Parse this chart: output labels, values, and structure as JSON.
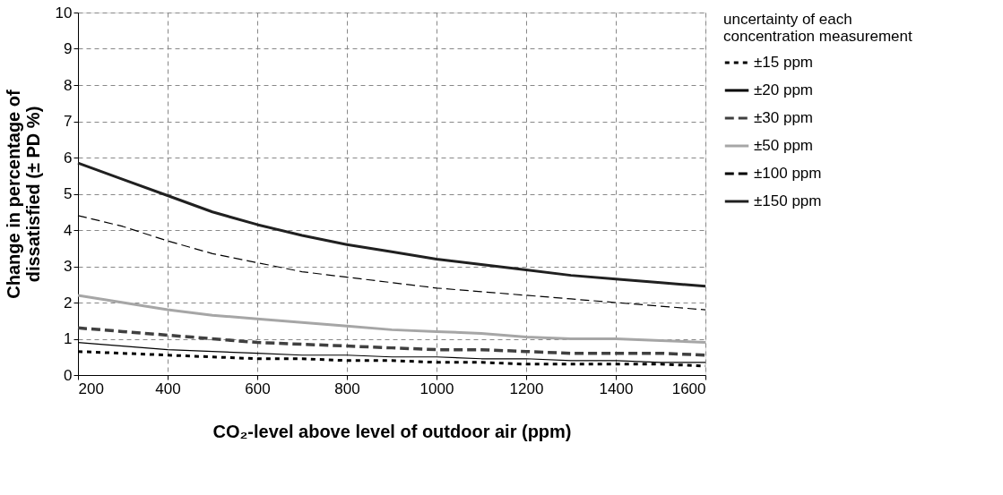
{
  "chart_data": {
    "type": "line",
    "xlabel": "CO₂-level above level of outdoor air  (ppm)",
    "ylabel": "Change in percentage of dissatisfied (± PD %)",
    "legend_title": "uncertainty of each concentration measurement",
    "x": [
      200,
      300,
      400,
      500,
      600,
      700,
      800,
      900,
      1000,
      1100,
      1200,
      1300,
      1400,
      1500,
      1600
    ],
    "series": [
      {
        "name": "±15 ppm",
        "color": "#000000",
        "line_style": "dotted",
        "values": [
          0.65,
          0.6,
          0.55,
          0.5,
          0.45,
          0.45,
          0.4,
          0.4,
          0.35,
          0.35,
          0.3,
          0.3,
          0.3,
          0.3,
          0.25
        ]
      },
      {
        "name": "±20 ppm",
        "color": "#000000",
        "line_style": "solid",
        "values": [
          0.9,
          0.8,
          0.7,
          0.65,
          0.6,
          0.55,
          0.55,
          0.5,
          0.5,
          0.45,
          0.45,
          0.4,
          0.4,
          0.35,
          0.35
        ]
      },
      {
        "name": "±30 ppm",
        "color": "#404040",
        "line_style": "dashed",
        "values": [
          1.3,
          1.2,
          1.1,
          1.0,
          0.9,
          0.85,
          0.8,
          0.75,
          0.7,
          0.7,
          0.65,
          0.6,
          0.6,
          0.6,
          0.55
        ]
      },
      {
        "name": "±50 ppm",
        "color": "#a6a6a6",
        "line_style": "solid",
        "values": [
          2.2,
          2.0,
          1.8,
          1.65,
          1.55,
          1.45,
          1.35,
          1.25,
          1.2,
          1.15,
          1.05,
          1.0,
          1.0,
          0.95,
          0.9
        ]
      },
      {
        "name": "±100 ppm",
        "color": "#000000",
        "line_style": "dashed",
        "values": [
          4.4,
          4.1,
          3.7,
          3.35,
          3.1,
          2.85,
          2.7,
          2.55,
          2.4,
          2.3,
          2.2,
          2.1,
          2.0,
          1.9,
          1.8
        ]
      },
      {
        "name": "±150 ppm",
        "color": "#202020",
        "line_style": "solid",
        "values": [
          5.85,
          5.4,
          4.95,
          4.5,
          4.15,
          3.85,
          3.6,
          3.4,
          3.2,
          3.05,
          2.9,
          2.75,
          2.65,
          2.55,
          2.45
        ]
      }
    ],
    "xlim": [
      200,
      1600
    ],
    "xticks": [
      200,
      400,
      600,
      800,
      1000,
      1200,
      1400,
      1600
    ],
    "ylim": [
      0,
      10
    ],
    "yticks": [
      0,
      1,
      2,
      3,
      4,
      5,
      6,
      7,
      8,
      9,
      10
    ],
    "grid": true,
    "legend": "top right",
    "marker": "none"
  }
}
